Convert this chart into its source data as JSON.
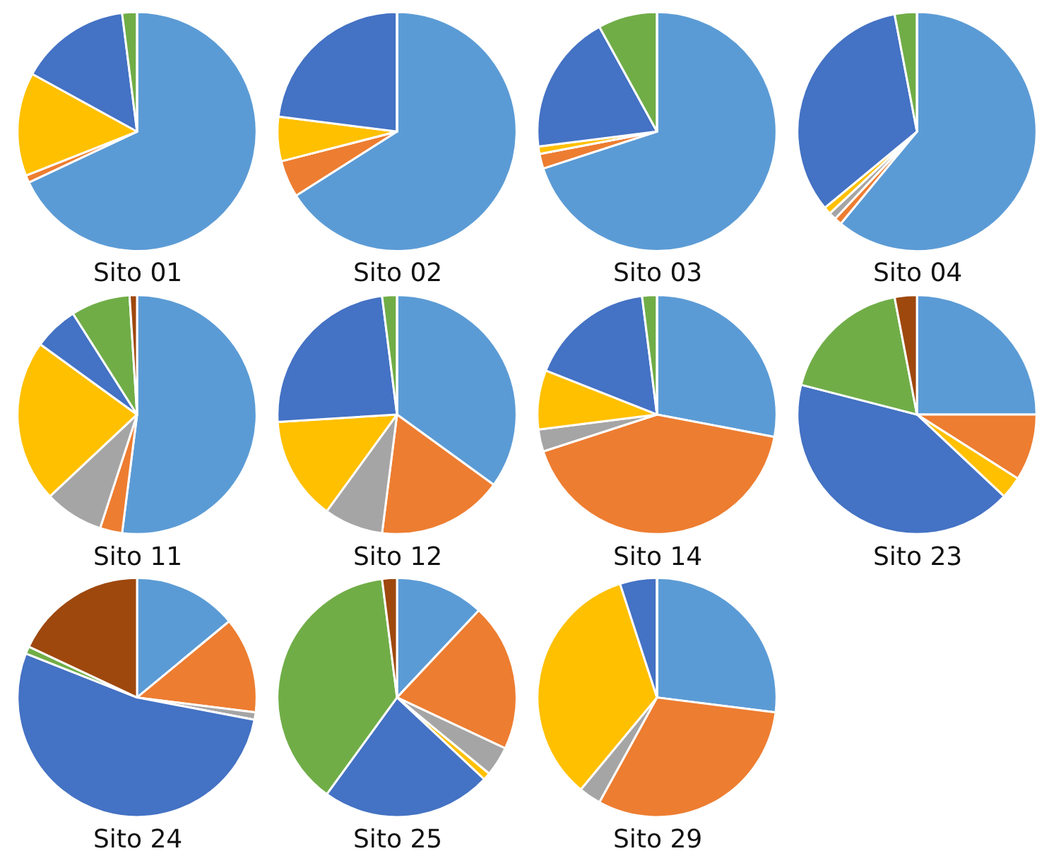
{
  "chart_data": [
    {
      "type": "pie",
      "title": "Sito 01",
      "categories": [
        null,
        null,
        null,
        null,
        null,
        null,
        null
      ],
      "values": [
        68,
        1,
        0,
        14,
        15,
        2,
        0
      ],
      "colors": [
        "#5b9bd5",
        "#ed7d31",
        "#a5a5a5",
        "#ffc000",
        "#4472c4",
        "#70ad47",
        "#9e480e"
      ]
    },
    {
      "type": "pie",
      "title": "Sito 02",
      "categories": [
        null,
        null,
        null,
        null,
        null,
        null,
        null
      ],
      "values": [
        66,
        5,
        0,
        6,
        23,
        0,
        0
      ],
      "colors": [
        "#5b9bd5",
        "#ed7d31",
        "#a5a5a5",
        "#ffc000",
        "#4472c4",
        "#70ad47",
        "#9e480e"
      ]
    },
    {
      "type": "pie",
      "title": "Sito 03",
      "categories": [
        null,
        null,
        null,
        null,
        null,
        null,
        null
      ],
      "values": [
        70,
        2,
        0,
        1,
        19,
        8,
        0
      ],
      "colors": [
        "#5b9bd5",
        "#ed7d31",
        "#a5a5a5",
        "#ffc000",
        "#4472c4",
        "#70ad47",
        "#9e480e"
      ]
    },
    {
      "type": "pie",
      "title": "Sito 04",
      "categories": [
        null,
        null,
        null,
        null,
        null,
        null,
        null
      ],
      "values": [
        61,
        1,
        1,
        1,
        33,
        3,
        0
      ],
      "colors": [
        "#5b9bd5",
        "#ed7d31",
        "#a5a5a5",
        "#ffc000",
        "#4472c4",
        "#70ad47",
        "#9e480e"
      ]
    },
    {
      "type": "pie",
      "title": "Sito 11",
      "categories": [
        null,
        null,
        null,
        null,
        null,
        null,
        null
      ],
      "values": [
        52,
        3,
        8,
        22,
        6,
        8,
        1
      ],
      "colors": [
        "#5b9bd5",
        "#ed7d31",
        "#a5a5a5",
        "#ffc000",
        "#4472c4",
        "#70ad47",
        "#9e480e"
      ]
    },
    {
      "type": "pie",
      "title": "Sito 12",
      "categories": [
        null,
        null,
        null,
        null,
        null,
        null,
        null
      ],
      "values": [
        35,
        17,
        8,
        14,
        24,
        2,
        0
      ],
      "colors": [
        "#5b9bd5",
        "#ed7d31",
        "#a5a5a5",
        "#ffc000",
        "#4472c4",
        "#70ad47",
        "#9e480e"
      ]
    },
    {
      "type": "pie",
      "title": "Sito 14",
      "categories": [
        null,
        null,
        null,
        null,
        null,
        null,
        null
      ],
      "values": [
        28,
        42,
        3,
        8,
        17,
        2,
        0
      ],
      "colors": [
        "#5b9bd5",
        "#ed7d31",
        "#a5a5a5",
        "#ffc000",
        "#4472c4",
        "#70ad47",
        "#9e480e"
      ]
    },
    {
      "type": "pie",
      "title": "Sito 23",
      "categories": [
        null,
        null,
        null,
        null,
        null,
        null,
        null
      ],
      "values": [
        25,
        9,
        0,
        3,
        42,
        18,
        3
      ],
      "colors": [
        "#5b9bd5",
        "#ed7d31",
        "#a5a5a5",
        "#ffc000",
        "#4472c4",
        "#70ad47",
        "#9e480e"
      ]
    },
    {
      "type": "pie",
      "title": "Sito 24",
      "categories": [
        null,
        null,
        null,
        null,
        null,
        null,
        null
      ],
      "values": [
        14,
        13,
        1,
        0,
        53,
        1,
        18
      ],
      "colors": [
        "#5b9bd5",
        "#ed7d31",
        "#a5a5a5",
        "#ffc000",
        "#4472c4",
        "#70ad47",
        "#9e480e"
      ]
    },
    {
      "type": "pie",
      "title": "Sito 25",
      "categories": [
        null,
        null,
        null,
        null,
        null,
        null,
        null
      ],
      "values": [
        12,
        20,
        4,
        1,
        23,
        38,
        2
      ],
      "colors": [
        "#5b9bd5",
        "#ed7d31",
        "#a5a5a5",
        "#ffc000",
        "#4472c4",
        "#70ad47",
        "#9e480e"
      ]
    },
    {
      "type": "pie",
      "title": "Sito 29",
      "categories": [
        null,
        null,
        null,
        null,
        null,
        null,
        null
      ],
      "values": [
        27,
        31,
        3,
        34,
        5,
        0,
        0
      ],
      "colors": [
        "#5b9bd5",
        "#ed7d31",
        "#a5a5a5",
        "#ffc000",
        "#4472c4",
        "#70ad47",
        "#9e480e"
      ]
    }
  ]
}
